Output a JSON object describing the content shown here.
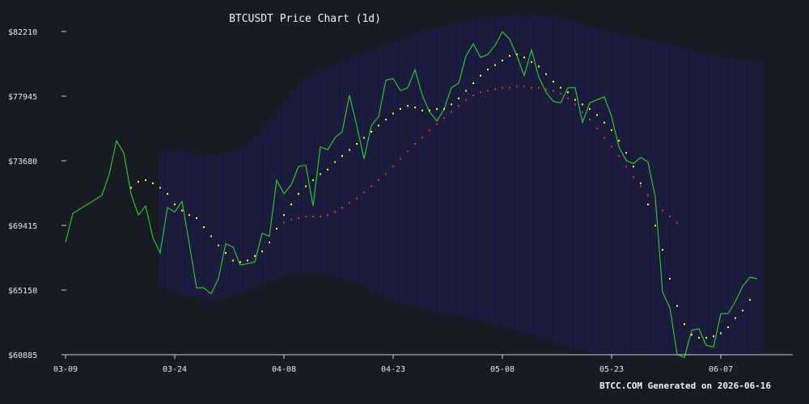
{
  "chart_data": {
    "type": "line",
    "title": "BTCUSDT Price Chart (1d)",
    "footer": "BTCC.COM Generated on 2026-06-16",
    "x_ticks": [
      "03-09",
      "03-24",
      "04-08",
      "04-23",
      "05-08",
      "05-23",
      "06-07"
    ],
    "y_ticks": [
      "$82210",
      "$77945",
      "$73680",
      "$69415",
      "$65150",
      "$60885"
    ],
    "ylim": [
      60885,
      82210
    ],
    "x_start": "2026-03-09",
    "colors": {
      "price": "#33dd33",
      "ma_short": "#ffff33",
      "ma_long": "#dd3333",
      "band": "#1f1f6e",
      "background": "#181a24"
    },
    "series": [
      {
        "key": "price",
        "start_index": 0,
        "values": [
          68300,
          70200,
          70500,
          70800,
          71100,
          71400,
          72800,
          75000,
          74200,
          71500,
          70100,
          70700,
          68600,
          67600,
          70600,
          70300,
          71000,
          68200,
          65300,
          65300,
          64900,
          65900,
          68200,
          68000,
          66800,
          66900,
          67000,
          68900,
          68700,
          72400,
          71500,
          72100,
          73300,
          73400,
          70700,
          74600,
          74400,
          75200,
          75600,
          78000,
          76000,
          73800,
          76000,
          76600,
          79000,
          79100,
          78300,
          78500,
          79700,
          78000,
          76900,
          76300,
          77100,
          78500,
          78800,
          80600,
          81400,
          80500,
          80700,
          81300,
          82200,
          81700,
          80600,
          79300,
          81000,
          79200,
          78200,
          77600,
          77500,
          78500,
          78500,
          76200,
          77500,
          77700,
          77900,
          76600,
          74600,
          73700,
          73500,
          73900,
          73600,
          71300,
          65000,
          64000,
          60900,
          60700,
          62500,
          62600,
          61500,
          61400,
          63600,
          63600,
          64400,
          65400,
          66000,
          65900
        ]
      },
      {
        "key": "ma_short",
        "start_index": 9,
        "values": [
          71900,
          72300,
          72400,
          72200,
          71900,
          71500,
          70800,
          70400,
          70100,
          69900,
          69300,
          68700,
          68100,
          67600,
          67100,
          67000,
          67100,
          67400,
          67700,
          68300,
          69200,
          70100,
          70800,
          71500,
          72000,
          72400,
          72800,
          73100,
          73600,
          74000,
          74400,
          74800,
          75200,
          75600,
          76000,
          76400,
          76800,
          77100,
          77300,
          77200,
          77000,
          77000,
          77100,
          77100,
          77400,
          77800,
          78300,
          78800,
          79300,
          79700,
          80000,
          80300,
          80600,
          80700,
          80500,
          80200,
          79900,
          79400,
          78900,
          78500,
          78200,
          77700,
          77400,
          77100,
          76700,
          76200,
          75700,
          75000,
          74200,
          73300,
          72200,
          70800,
          69400,
          67800,
          65900,
          64100,
          62900,
          62200,
          62000,
          62000,
          62100,
          62300,
          62700,
          63300,
          63800,
          64500
        ]
      },
      {
        "key": "ma_long",
        "start_index": 30,
        "values": [
          69600,
          69800,
          69900,
          70000,
          70000,
          70000,
          70100,
          70300,
          70600,
          70900,
          71200,
          71600,
          72000,
          72400,
          72800,
          73300,
          73800,
          74300,
          74800,
          75200,
          75700,
          76100,
          76500,
          76900,
          77300,
          77700,
          78000,
          78200,
          78300,
          78400,
          78500,
          78500,
          78600,
          78600,
          78500,
          78500,
          78400,
          78300,
          78100,
          77800,
          77400,
          76900,
          76400,
          75800,
          75200,
          74600,
          74000,
          73300,
          72600,
          72000,
          71400,
          70900,
          70400,
          70000,
          69600
        ]
      }
    ],
    "band": {
      "start_index": 13,
      "upper": [
        74200,
        74300,
        74400,
        74300,
        74200,
        74100,
        74000,
        74000,
        74100,
        74200,
        74400,
        74600,
        74900,
        75300,
        75800,
        76400,
        77000,
        77700,
        78300,
        78800,
        79200,
        79500,
        79700,
        79900,
        80100,
        80300,
        80500,
        80700,
        80900,
        81000,
        81200,
        81400,
        81600,
        81800,
        82000,
        82100,
        82300,
        82400,
        82500,
        82600,
        82700,
        82800,
        82900,
        83000,
        83100,
        83200,
        83200,
        83300,
        83300,
        83300,
        83300,
        83300,
        83300,
        83200,
        83100,
        83000,
        82900,
        82800,
        82600,
        82500,
        82400,
        82200,
        82100,
        82000,
        81900,
        81800,
        81700,
        81600,
        81500,
        81400,
        81300,
        81200,
        81000,
        80900,
        80800,
        80700,
        80600,
        80500,
        80400,
        80400,
        80300,
        80300,
        80200
      ],
      "lower": [
        65400,
        65200,
        65000,
        64800,
        64700,
        64600,
        64500,
        64500,
        64600,
        64700,
        64800,
        65000,
        65200,
        65400,
        65600,
        65800,
        66000,
        66100,
        66200,
        66300,
        66300,
        66300,
        66300,
        66200,
        66000,
        65900,
        65700,
        65500,
        65300,
        65000,
        64800,
        64600,
        64400,
        64200,
        64100,
        64000,
        63900,
        63800,
        63700,
        63600,
        63500,
        63400,
        63300,
        63200,
        63100,
        63000,
        62900,
        62700,
        62600,
        62500,
        62300,
        62200,
        62000,
        61900,
        61700,
        61500,
        61400,
        61200,
        61100,
        61000,
        60950,
        60900,
        60900,
        60900,
        60900,
        60900,
        60900,
        60900,
        60900,
        60900,
        60900,
        60900,
        60900,
        60900,
        60900,
        60900,
        60900,
        60900,
        60900,
        60900,
        60900,
        60900,
        60900
      ]
    },
    "grid": false
  }
}
